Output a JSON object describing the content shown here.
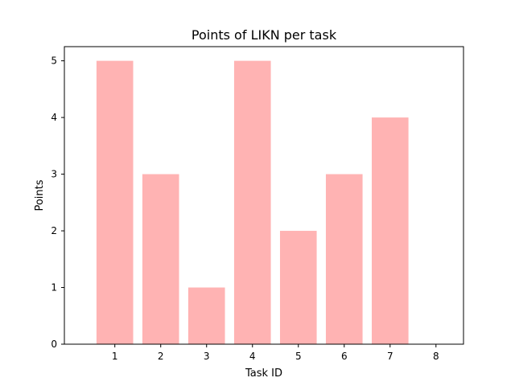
{
  "chart_data": {
    "type": "bar",
    "title": "Points of LIKN per task",
    "xlabel": "Task ID",
    "ylabel": "Points",
    "categories": [
      "1",
      "2",
      "3",
      "4",
      "5",
      "6",
      "7",
      "8"
    ],
    "values": [
      5,
      3,
      1,
      5,
      2,
      3,
      4,
      0
    ],
    "ylim": [
      0,
      5.25
    ],
    "yticks": [
      0,
      1,
      2,
      3,
      4,
      5
    ],
    "bar_color": "#ffb3b3",
    "grid": false,
    "legend": "none"
  }
}
